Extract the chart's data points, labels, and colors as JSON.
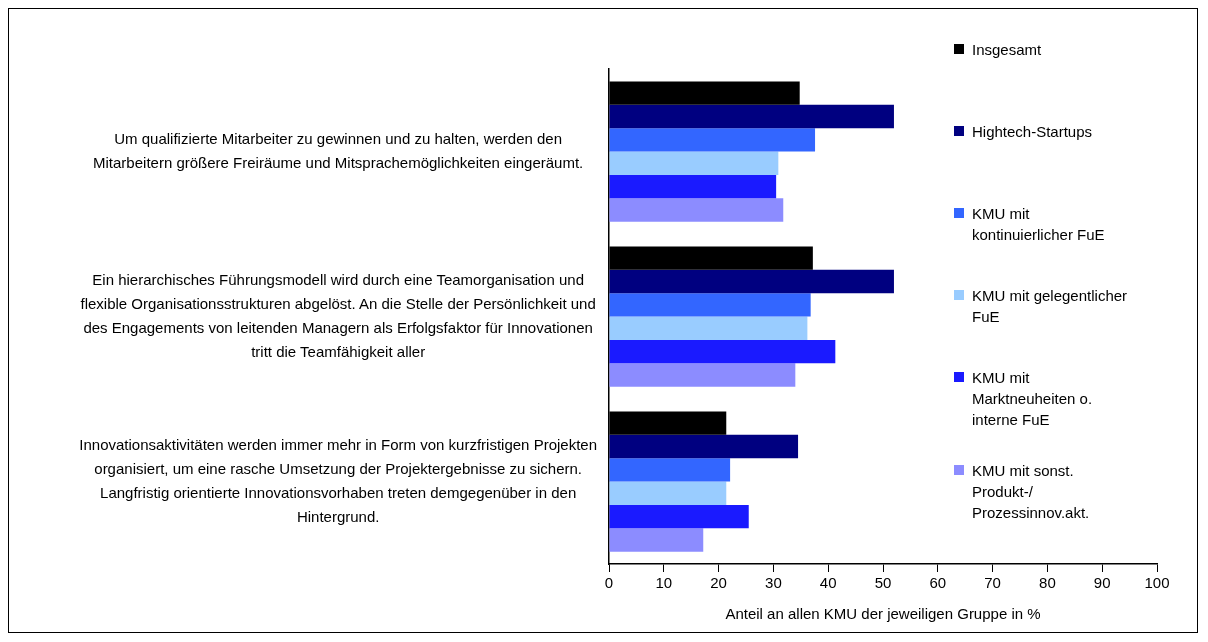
{
  "chart_data": {
    "type": "bar",
    "orientation": "horizontal",
    "xlabel": "Anteil an allen KMU der jeweiligen Gruppe in %",
    "categories": [
      "Um qualifizierte Mitarbeiter zu gewinnen und zu halten, werden den Mitarbeitern größere Freiräume und Mitsprachemöglichkeiten eingeräumt.",
      "Ein hierarchisches Führungsmodell wird durch eine Teamorganisation und flexible Organisationsstrukturen abgelöst. An die Stelle der Persönlichkeit und des Engagements von leitenden Managern als Erfolgsfaktor für Innovationen tritt die Teamfähigkeit aller",
      "Innovationsaktivitäten werden immer mehr in Form von kurzfristigen Projekten organisiert, um eine rasche Umsetzung der Projektergebnisse zu sichern. Langfristig orientierte Innovationsvorhaben treten demgegenüber in den Hintergrund."
    ],
    "series": [
      {
        "name": "Insgesamt",
        "color": "#000000",
        "values": [
          34.8,
          37.2,
          21.4
        ]
      },
      {
        "name": "Hightech-Startups",
        "color": "#000080",
        "values": [
          52.0,
          52.0,
          34.5
        ]
      },
      {
        "name": "KMU mit kontinuierlicher FuE",
        "color": "#3366ff",
        "values": [
          37.6,
          36.8,
          22.1
        ]
      },
      {
        "name": "KMU mit gelegentlicher FuE",
        "color": "#99ccff",
        "values": [
          30.9,
          36.2,
          21.4
        ]
      },
      {
        "name": "KMU mit Marktneuheiten o. interne FuE",
        "color": "#1a1aff",
        "values": [
          30.5,
          41.3,
          25.5
        ]
      },
      {
        "name": "KMU mit sonst. Produkt-/ Prozessinnov.akt.",
        "color": "#8c8cff",
        "values": [
          31.8,
          34.0,
          17.2
        ]
      }
    ],
    "xlim": [
      0,
      100
    ],
    "xticks": [
      0,
      10,
      20,
      30,
      40,
      50,
      60,
      70,
      80,
      90,
      100
    ],
    "grid": false,
    "legend": "right"
  }
}
